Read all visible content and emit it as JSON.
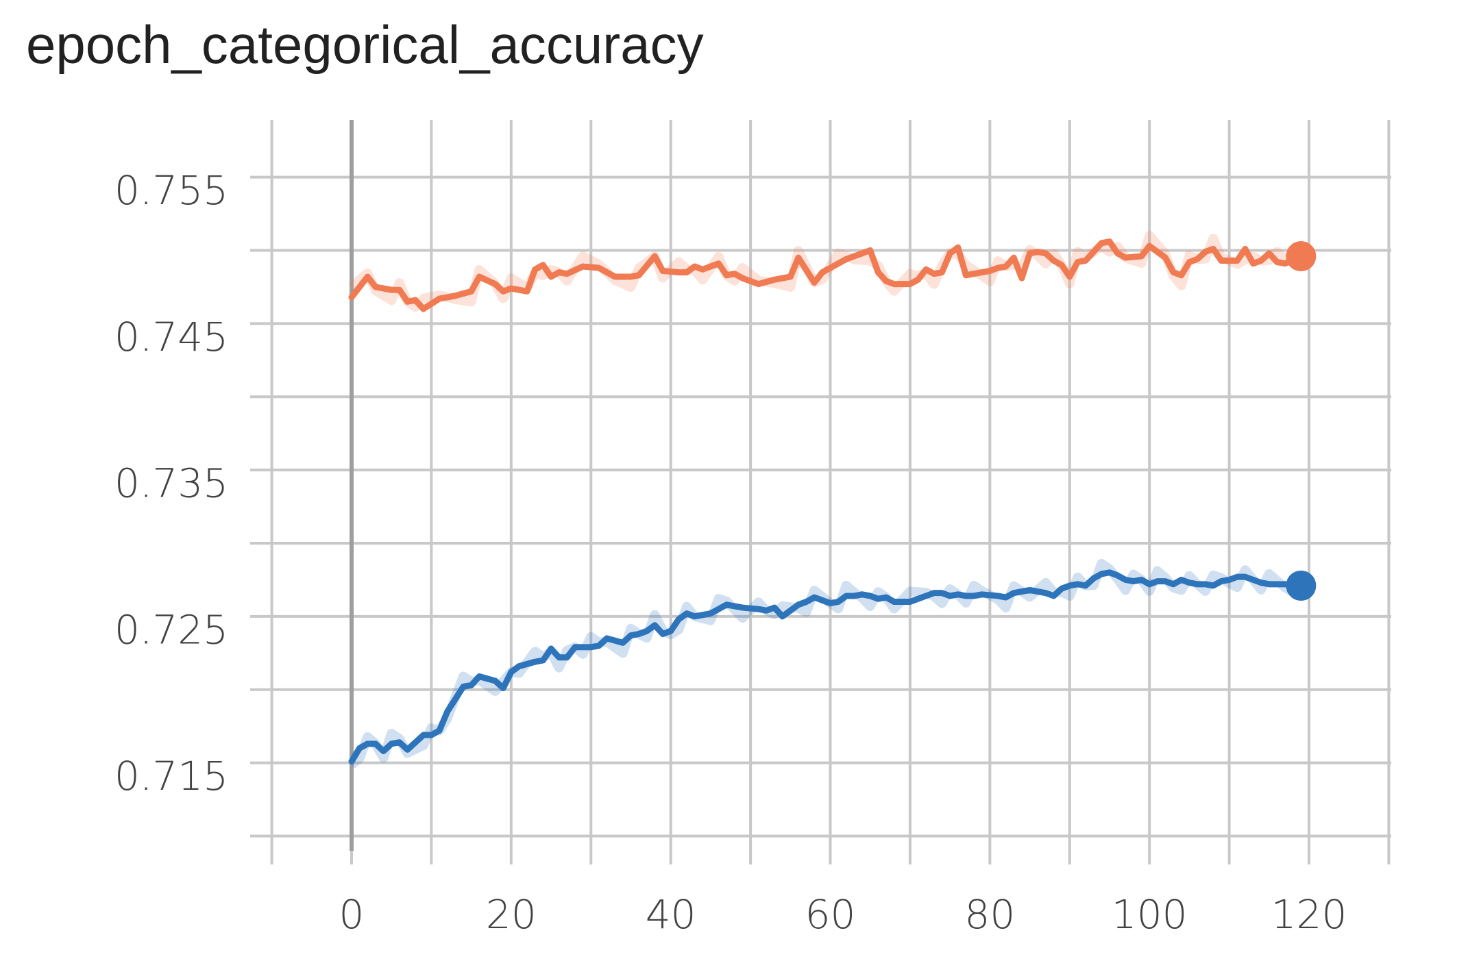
{
  "chart_data": {
    "type": "line",
    "title": "epoch_categorical_accuracy",
    "xlabel": "",
    "ylabel": "",
    "xlim": [
      -10,
      130
    ],
    "ylim": [
      0.7105,
      0.76
    ],
    "x_ticks": [
      "0",
      "20",
      "40",
      "60",
      "80",
      "100",
      "120"
    ],
    "y_ticks": [
      "0.715",
      "0.725",
      "0.735",
      "0.745",
      "0.755"
    ],
    "grid": true,
    "legend": "none",
    "series": [
      {
        "color": "#f07a52",
        "points": [
          [
            0,
            0.7478
          ],
          [
            2,
            0.7492
          ],
          [
            3,
            0.7485
          ],
          [
            5,
            0.7483
          ],
          [
            6,
            0.7483
          ],
          [
            7,
            0.7475
          ],
          [
            8,
            0.7476
          ],
          [
            9,
            0.747
          ],
          [
            11,
            0.7477
          ],
          [
            13,
            0.7479
          ],
          [
            15,
            0.7482
          ],
          [
            16,
            0.7492
          ],
          [
            18,
            0.7487
          ],
          [
            19,
            0.7482
          ],
          [
            20,
            0.7484
          ],
          [
            22,
            0.7482
          ],
          [
            23,
            0.7497
          ],
          [
            24,
            0.75
          ],
          [
            25,
            0.7492
          ],
          [
            26,
            0.7495
          ],
          [
            27,
            0.7494
          ],
          [
            29,
            0.7499
          ],
          [
            31,
            0.7498
          ],
          [
            33,
            0.7492
          ],
          [
            35,
            0.7492
          ],
          [
            36,
            0.7493
          ],
          [
            38,
            0.7506
          ],
          [
            39,
            0.7496
          ],
          [
            41,
            0.7495
          ],
          [
            42,
            0.7495
          ],
          [
            43,
            0.7499
          ],
          [
            44,
            0.7497
          ],
          [
            46,
            0.7501
          ],
          [
            47,
            0.7493
          ],
          [
            48,
            0.7494
          ],
          [
            49,
            0.7491
          ],
          [
            51,
            0.7487
          ],
          [
            53,
            0.749
          ],
          [
            55,
            0.7492
          ],
          [
            56,
            0.7505
          ],
          [
            58,
            0.7488
          ],
          [
            59,
            0.7495
          ],
          [
            61,
            0.7501
          ],
          [
            62,
            0.7504
          ],
          [
            63,
            0.7506
          ],
          [
            65,
            0.751
          ],
          [
            66,
            0.7495
          ],
          [
            67,
            0.7489
          ],
          [
            68,
            0.7487
          ],
          [
            70,
            0.7487
          ],
          [
            71,
            0.749
          ],
          [
            72,
            0.7497
          ],
          [
            73,
            0.7494
          ],
          [
            74,
            0.7495
          ],
          [
            75,
            0.7508
          ],
          [
            76,
            0.7512
          ],
          [
            77,
            0.7493
          ],
          [
            78,
            0.7494
          ],
          [
            79,
            0.7495
          ],
          [
            80,
            0.7496
          ],
          [
            81,
            0.7498
          ],
          [
            82,
            0.7499
          ],
          [
            83,
            0.7505
          ],
          [
            84,
            0.7491
          ],
          [
            85,
            0.7508
          ],
          [
            86,
            0.7509
          ],
          [
            87,
            0.7508
          ],
          [
            88,
            0.7503
          ],
          [
            89,
            0.75
          ],
          [
            90,
            0.7492
          ],
          [
            91,
            0.7502
          ],
          [
            92,
            0.7503
          ],
          [
            94,
            0.7515
          ],
          [
            95,
            0.7516
          ],
          [
            96,
            0.7508
          ],
          [
            97,
            0.7505
          ],
          [
            99,
            0.7506
          ],
          [
            100,
            0.7513
          ],
          [
            102,
            0.7505
          ],
          [
            103,
            0.7495
          ],
          [
            104,
            0.7493
          ],
          [
            105,
            0.7502
          ],
          [
            106,
            0.7504
          ],
          [
            107,
            0.7509
          ],
          [
            108,
            0.7511
          ],
          [
            109,
            0.7503
          ],
          [
            111,
            0.7503
          ],
          [
            112,
            0.7511
          ],
          [
            113,
            0.7501
          ],
          [
            114,
            0.7503
          ],
          [
            115,
            0.7508
          ],
          [
            116,
            0.7502
          ],
          [
            117,
            0.7501
          ],
          [
            119,
            0.7506
          ]
        ]
      },
      {
        "color": "#2e74bb",
        "points": [
          [
            0,
            0.7161
          ],
          [
            1,
            0.717
          ],
          [
            2,
            0.7173
          ],
          [
            3,
            0.7173
          ],
          [
            4,
            0.7168
          ],
          [
            5,
            0.7173
          ],
          [
            6,
            0.7174
          ],
          [
            7,
            0.7169
          ],
          [
            9,
            0.7179
          ],
          [
            10,
            0.7179
          ],
          [
            11,
            0.7182
          ],
          [
            12,
            0.7195
          ],
          [
            14,
            0.7212
          ],
          [
            15,
            0.7213
          ],
          [
            16,
            0.7219
          ],
          [
            18,
            0.7216
          ],
          [
            19,
            0.7211
          ],
          [
            20,
            0.7222
          ],
          [
            21,
            0.7226
          ],
          [
            23,
            0.7229
          ],
          [
            24,
            0.723
          ],
          [
            25,
            0.7238
          ],
          [
            26,
            0.7232
          ],
          [
            27,
            0.7232
          ],
          [
            28,
            0.7239
          ],
          [
            29,
            0.7239
          ],
          [
            30,
            0.7239
          ],
          [
            31,
            0.724
          ],
          [
            32,
            0.7245
          ],
          [
            34,
            0.7242
          ],
          [
            35,
            0.7247
          ],
          [
            36,
            0.7248
          ],
          [
            37,
            0.725
          ],
          [
            38,
            0.7254
          ],
          [
            39,
            0.7248
          ],
          [
            40,
            0.725
          ],
          [
            41,
            0.7258
          ],
          [
            42,
            0.7262
          ],
          [
            43,
            0.726
          ],
          [
            45,
            0.7262
          ],
          [
            46,
            0.7265
          ],
          [
            47,
            0.7268
          ],
          [
            48,
            0.7267
          ],
          [
            49,
            0.7266
          ],
          [
            51,
            0.7265
          ],
          [
            52,
            0.7264
          ],
          [
            53,
            0.7266
          ],
          [
            54,
            0.726
          ],
          [
            55,
            0.7264
          ],
          [
            56,
            0.7268
          ],
          [
            57,
            0.727
          ],
          [
            58,
            0.7273
          ],
          [
            60,
            0.7269
          ],
          [
            61,
            0.727
          ],
          [
            62,
            0.7274
          ],
          [
            63,
            0.7274
          ],
          [
            64,
            0.7275
          ],
          [
            65,
            0.7274
          ],
          [
            66,
            0.7272
          ],
          [
            67,
            0.7273
          ],
          [
            68,
            0.727
          ],
          [
            70,
            0.727
          ],
          [
            72,
            0.7274
          ],
          [
            73,
            0.7276
          ],
          [
            74,
            0.7276
          ],
          [
            75,
            0.7274
          ],
          [
            76,
            0.7275
          ],
          [
            77,
            0.7274
          ],
          [
            78,
            0.7274
          ],
          [
            79,
            0.7275
          ],
          [
            81,
            0.7274
          ],
          [
            82,
            0.7273
          ],
          [
            83,
            0.7276
          ],
          [
            84,
            0.7277
          ],
          [
            85,
            0.7278
          ],
          [
            87,
            0.7276
          ],
          [
            88,
            0.7274
          ],
          [
            89,
            0.7279
          ],
          [
            90,
            0.7281
          ],
          [
            91,
            0.7282
          ],
          [
            92,
            0.7281
          ],
          [
            93,
            0.7286
          ],
          [
            94,
            0.7289
          ],
          [
            95,
            0.729
          ],
          [
            96,
            0.7288
          ],
          [
            97,
            0.7285
          ],
          [
            98,
            0.7284
          ],
          [
            99,
            0.7285
          ],
          [
            100,
            0.7282
          ],
          [
            101,
            0.7284
          ],
          [
            102,
            0.7284
          ],
          [
            103,
            0.7282
          ],
          [
            104,
            0.7285
          ],
          [
            105,
            0.7283
          ],
          [
            106,
            0.7282
          ],
          [
            107,
            0.7282
          ],
          [
            108,
            0.7281
          ],
          [
            109,
            0.7284
          ],
          [
            110,
            0.7285
          ],
          [
            111,
            0.7287
          ],
          [
            112,
            0.7287
          ],
          [
            113,
            0.7285
          ],
          [
            114,
            0.7283
          ],
          [
            115,
            0.7282
          ],
          [
            116,
            0.7282
          ],
          [
            117,
            0.7282
          ],
          [
            119,
            0.7281
          ]
        ]
      }
    ]
  }
}
